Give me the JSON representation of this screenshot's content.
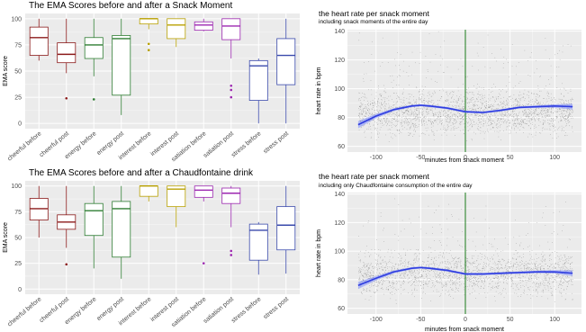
{
  "chart_data": [
    {
      "type": "box",
      "title": "The EMA Scores before and after a Snack Moment",
      "xlabel": "",
      "ylabel": "EMA score",
      "ylim": [
        -5,
        105
      ],
      "yticks": [
        0,
        25,
        50,
        75,
        100
      ],
      "grid": true,
      "legend": "none",
      "categories": [
        "cheerful before",
        "cheerful post",
        "energy before",
        "energy post",
        "interest before",
        "interest post",
        "satiation before",
        "satiation post",
        "stress before",
        "stress post"
      ],
      "colors": [
        "#8b1a1a",
        "#8b1a1a",
        "#2e7d32",
        "#2e7d32",
        "#b8a000",
        "#b8a000",
        "#9c27b0",
        "#9c27b0",
        "#3949ab",
        "#3949ab"
      ],
      "boxes": [
        {
          "min": 60,
          "q1": 65,
          "median": 82,
          "q3": 92,
          "max": 100,
          "outliers": []
        },
        {
          "min": 48,
          "q1": 58,
          "median": 66,
          "q3": 77,
          "max": 100,
          "outliers": [
            24
          ]
        },
        {
          "min": 45,
          "q1": 62,
          "median": 75,
          "q3": 82,
          "max": 100,
          "outliers": [
            23
          ]
        },
        {
          "min": 8,
          "q1": 27,
          "median": 81,
          "q3": 84,
          "max": 100,
          "outliers": []
        },
        {
          "min": 90,
          "q1": 95,
          "median": 100,
          "q3": 100,
          "max": 100,
          "outliers": [
            76,
            70
          ]
        },
        {
          "min": 73,
          "q1": 81,
          "median": 94,
          "q3": 100,
          "max": 100,
          "outliers": []
        },
        {
          "min": 88,
          "q1": 89,
          "median": 94,
          "q3": 97,
          "max": 100,
          "outliers": []
        },
        {
          "min": 62,
          "q1": 80,
          "median": 93,
          "q3": 100,
          "max": 100,
          "outliers": [
            36,
            32,
            25
          ]
        },
        {
          "min": 0,
          "q1": 22,
          "median": 55,
          "q3": 60,
          "max": 62,
          "outliers": []
        },
        {
          "min": 0,
          "q1": 37,
          "median": 65,
          "q3": 81,
          "max": 100,
          "outliers": []
        }
      ]
    },
    {
      "type": "box",
      "title": "The EMA Scores before and after a Chaudfontaine drink",
      "xlabel": "",
      "ylabel": "EMA score",
      "ylim": [
        -5,
        105
      ],
      "yticks": [
        0,
        25,
        50,
        75,
        100
      ],
      "grid": true,
      "legend": "none",
      "categories": [
        "cheerful before",
        "cheerful post",
        "energy before",
        "energy post",
        "interest before",
        "interest post",
        "satiation before",
        "satiation post",
        "stress before",
        "stress post"
      ],
      "colors": [
        "#8b1a1a",
        "#8b1a1a",
        "#2e7d32",
        "#2e7d32",
        "#b8a000",
        "#b8a000",
        "#9c27b0",
        "#9c27b0",
        "#3949ab",
        "#3949ab"
      ],
      "boxes": [
        {
          "min": 50,
          "q1": 67,
          "median": 78,
          "q3": 88,
          "max": 100,
          "outliers": []
        },
        {
          "min": 40,
          "q1": 58,
          "median": 65,
          "q3": 72,
          "max": 100,
          "outliers": [
            24
          ]
        },
        {
          "min": 20,
          "q1": 52,
          "median": 76,
          "q3": 83,
          "max": 100,
          "outliers": []
        },
        {
          "min": 10,
          "q1": 31,
          "median": 78,
          "q3": 85,
          "max": 100,
          "outliers": []
        },
        {
          "min": 85,
          "q1": 90,
          "median": 100,
          "q3": 100,
          "max": 100,
          "outliers": []
        },
        {
          "min": 60,
          "q1": 80,
          "median": 97,
          "q3": 100,
          "max": 100,
          "outliers": []
        },
        {
          "min": 85,
          "q1": 89,
          "median": 96,
          "q3": 100,
          "max": 100,
          "outliers": [
            25
          ]
        },
        {
          "min": 60,
          "q1": 83,
          "median": 93,
          "q3": 98,
          "max": 100,
          "outliers": [
            37,
            33
          ]
        },
        {
          "min": 14,
          "q1": 28,
          "median": 57,
          "q3": 63,
          "max": 65,
          "outliers": []
        },
        {
          "min": 15,
          "q1": 38,
          "median": 62,
          "q3": 80,
          "max": 100,
          "outliers": []
        }
      ]
    },
    {
      "type": "scatter",
      "title": "the heart rate per snack moment",
      "subtitle": "including snack moments of the entire day",
      "xlabel": "minutes from snack moment",
      "ylabel": "heart rate in bpm",
      "xlim": [
        -132,
        130
      ],
      "ylim": [
        56,
        141
      ],
      "xticks": [
        -100,
        -50,
        0,
        50,
        100
      ],
      "yticks": [
        60,
        80,
        100,
        120,
        140
      ],
      "vline": 0,
      "grid": true,
      "legend": "none",
      "point_cloud": {
        "count": 2500,
        "x_range": [
          -120,
          120
        ],
        "center": 84,
        "spread": 9
      },
      "smooth": {
        "x": [
          -120,
          -100,
          -80,
          -60,
          -50,
          -40,
          -20,
          0,
          20,
          40,
          60,
          80,
          100,
          120
        ],
        "y": [
          75,
          81,
          85.5,
          88,
          88.5,
          88,
          86.5,
          84,
          83.5,
          85,
          87,
          87.5,
          88,
          87.5
        ],
        "band": [
          2.5,
          1.5,
          1,
          0.8,
          0.8,
          0.8,
          0.8,
          0.8,
          0.8,
          0.8,
          0.8,
          0.9,
          1.2,
          2
        ]
      }
    },
    {
      "type": "scatter",
      "title": "the heart rate per snack moment",
      "subtitle": "including only Chaudfontaine consumption of the entire day",
      "xlabel": "minutes from snack moment",
      "ylabel": "heart rate in bpm",
      "xlim": [
        -132,
        130
      ],
      "ylim": [
        56,
        141
      ],
      "xticks": [
        -100,
        -50,
        0,
        50,
        100
      ],
      "yticks": [
        60,
        80,
        100,
        120,
        140
      ],
      "vline": 0,
      "grid": true,
      "legend": "none",
      "point_cloud": {
        "count": 2200,
        "x_range": [
          -120,
          120
        ],
        "center": 84,
        "spread": 9
      },
      "smooth": {
        "x": [
          -120,
          -100,
          -80,
          -60,
          -50,
          -40,
          -20,
          0,
          20,
          40,
          60,
          80,
          100,
          120
        ],
        "y": [
          76,
          81,
          85.5,
          88,
          88.5,
          88,
          86.5,
          84,
          84,
          84.5,
          85,
          85.5,
          85.5,
          84.5
        ],
        "band": [
          2.5,
          1.5,
          1,
          0.8,
          0.8,
          0.8,
          0.8,
          0.8,
          0.8,
          0.8,
          0.8,
          0.9,
          1.2,
          2
        ]
      }
    }
  ]
}
